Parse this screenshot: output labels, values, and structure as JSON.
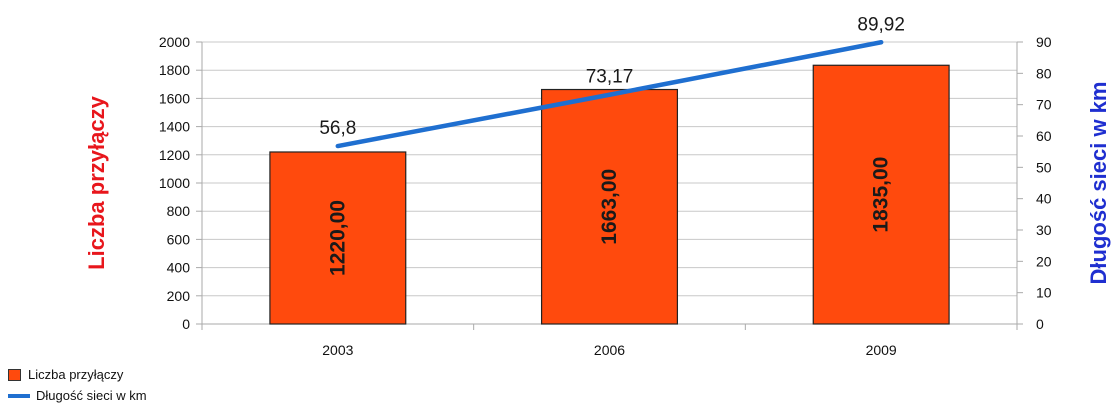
{
  "chart_data": {
    "type": "bar",
    "categories": [
      "2003",
      "2006",
      "2009"
    ],
    "series": [
      {
        "name": "Liczba przyłączy",
        "type": "bar",
        "axis": "left",
        "values": [
          1220,
          1663,
          1835
        ],
        "data_labels": [
          "1220,00",
          "1663,00",
          "1835,00"
        ],
        "color": "#ff4a0d"
      },
      {
        "name": "Długość sieci w km",
        "type": "line",
        "axis": "right",
        "values": [
          56.8,
          73.17,
          89.92
        ],
        "data_labels": [
          "56,8",
          "73,17",
          "89,92"
        ],
        "color": "#1f6fd0"
      }
    ],
    "ylabel_left": "Liczba przyłączy",
    "ylabel_right": "Długość sieci w km",
    "ylim_left": [
      0,
      2000
    ],
    "ylim_right": [
      0,
      90
    ],
    "yticks_left": [
      "0",
      "200",
      "400",
      "600",
      "800",
      "1000",
      "1200",
      "1400",
      "1600",
      "1800",
      "2000"
    ],
    "yticks_right": [
      "0",
      "10",
      "20",
      "30",
      "40",
      "50",
      "60",
      "70",
      "80",
      "90"
    ],
    "ylabel_left_color": "#e8161c",
    "ylabel_right_color": "#1f2fd0",
    "grid": true,
    "legend_position": "bottom-left"
  }
}
